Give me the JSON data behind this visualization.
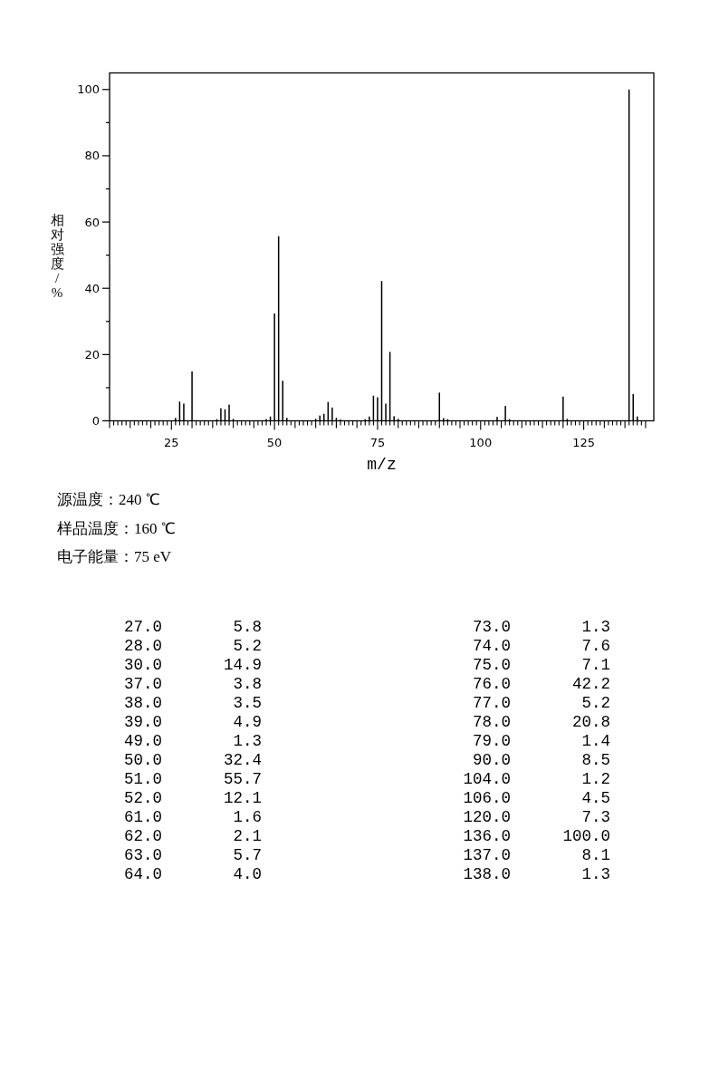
{
  "chart_data": {
    "type": "bar",
    "xlabel": "m/z",
    "ylabel": "相对强度/%",
    "color": "#000000",
    "x": [
      26,
      27,
      28,
      30,
      36,
      37,
      38,
      39,
      40,
      48,
      49,
      50,
      51,
      52,
      53,
      60,
      61,
      62,
      63,
      64,
      65,
      66,
      72,
      73,
      74,
      75,
      76,
      77,
      78,
      79,
      80,
      90,
      91,
      92,
      104,
      106,
      107,
      120,
      121,
      136,
      137,
      138
    ],
    "values": [
      0.9,
      5.8,
      5.2,
      14.9,
      0.5,
      3.8,
      3.5,
      4.9,
      0.6,
      0.5,
      1.3,
      32.4,
      55.7,
      12.1,
      0.9,
      0.6,
      1.6,
      2.1,
      5.7,
      4.0,
      0.9,
      0.4,
      0.5,
      1.3,
      7.6,
      7.1,
      42.2,
      5.2,
      20.8,
      1.4,
      0.6,
      8.5,
      0.8,
      0.5,
      1.2,
      4.5,
      0.5,
      7.3,
      0.6,
      100.0,
      8.1,
      1.3
    ],
    "xlim": [
      10,
      142
    ],
    "ylim": [
      0,
      105
    ],
    "xticks": [
      {
        "value": 10,
        "label": null
      },
      {
        "value": 11,
        "label": null
      },
      {
        "value": 12,
        "label": null
      },
      {
        "value": 13,
        "label": null
      },
      {
        "value": 14,
        "label": null
      },
      {
        "value": 15,
        "label": null
      },
      {
        "value": 16,
        "label": null
      },
      {
        "value": 17,
        "label": null
      },
      {
        "value": 18,
        "label": null
      },
      {
        "value": 19,
        "label": null
      },
      {
        "value": 20,
        "label": null
      },
      {
        "value": 21,
        "label": null
      },
      {
        "value": 22,
        "label": null
      },
      {
        "value": 23,
        "label": null
      },
      {
        "value": 24,
        "label": null
      },
      25,
      {
        "value": 26,
        "label": null
      },
      {
        "value": 27,
        "label": null
      },
      {
        "value": 28,
        "label": null
      },
      {
        "value": 29,
        "label": null
      },
      {
        "value": 30,
        "label": null
      },
      {
        "value": 31,
        "label": null
      },
      {
        "value": 32,
        "label": null
      },
      {
        "value": 33,
        "label": null
      },
      {
        "value": 34,
        "label": null
      },
      {
        "value": 35,
        "label": null
      },
      {
        "value": 36,
        "label": null
      },
      {
        "value": 37,
        "label": null
      },
      {
        "value": 38,
        "label": null
      },
      {
        "value": 39,
        "label": null
      },
      {
        "value": 40,
        "label": null
      },
      {
        "value": 41,
        "label": null
      },
      {
        "value": 42,
        "label": null
      },
      {
        "value": 43,
        "label": null
      },
      {
        "value": 44,
        "label": null
      },
      {
        "value": 45,
        "label": null
      },
      {
        "value": 46,
        "label": null
      },
      {
        "value": 47,
        "label": null
      },
      {
        "value": 48,
        "label": null
      },
      {
        "value": 49,
        "label": null
      },
      50,
      {
        "value": 51,
        "label": null
      },
      {
        "value": 52,
        "label": null
      },
      {
        "value": 53,
        "label": null
      },
      {
        "value": 54,
        "label": null
      },
      {
        "value": 55,
        "label": null
      },
      {
        "value": 56,
        "label": null
      },
      {
        "value": 57,
        "label": null
      },
      {
        "value": 58,
        "label": null
      },
      {
        "value": 59,
        "label": null
      },
      {
        "value": 60,
        "label": null
      },
      {
        "value": 61,
        "label": null
      },
      {
        "value": 62,
        "label": null
      },
      {
        "value": 63,
        "label": null
      },
      {
        "value": 64,
        "label": null
      },
      {
        "value": 65,
        "label": null
      },
      {
        "value": 66,
        "label": null
      },
      {
        "value": 67,
        "label": null
      },
      {
        "value": 68,
        "label": null
      },
      {
        "value": 69,
        "label": null
      },
      {
        "value": 70,
        "label": null
      },
      {
        "value": 71,
        "label": null
      },
      {
        "value": 72,
        "label": null
      },
      {
        "value": 73,
        "label": null
      },
      {
        "value": 74,
        "label": null
      },
      75,
      {
        "value": 76,
        "label": null
      },
      {
        "value": 77,
        "label": null
      },
      {
        "value": 78,
        "label": null
      },
      {
        "value": 79,
        "label": null
      },
      {
        "value": 80,
        "label": null
      },
      {
        "value": 81,
        "label": null
      },
      {
        "value": 82,
        "label": null
      },
      {
        "value": 83,
        "label": null
      },
      {
        "value": 84,
        "label": null
      },
      {
        "value": 85,
        "label": null
      },
      {
        "value": 86,
        "label": null
      },
      {
        "value": 87,
        "label": null
      },
      {
        "value": 88,
        "label": null
      },
      {
        "value": 89,
        "label": null
      },
      {
        "value": 90,
        "label": null
      },
      {
        "value": 91,
        "label": null
      },
      {
        "value": 92,
        "label": null
      },
      {
        "value": 93,
        "label": null
      },
      {
        "value": 94,
        "label": null
      },
      {
        "value": 95,
        "label": null
      },
      {
        "value": 96,
        "label": null
      },
      {
        "value": 97,
        "label": null
      },
      {
        "value": 98,
        "label": null
      },
      {
        "value": 99,
        "label": null
      },
      100,
      {
        "value": 101,
        "label": null
      },
      {
        "value": 102,
        "label": null
      },
      {
        "value": 103,
        "label": null
      },
      {
        "value": 104,
        "label": null
      },
      {
        "value": 105,
        "label": null
      },
      {
        "value": 106,
        "label": null
      },
      {
        "value": 107,
        "label": null
      },
      {
        "value": 108,
        "label": null
      },
      {
        "value": 109,
        "label": null
      },
      {
        "value": 110,
        "label": null
      },
      {
        "value": 111,
        "label": null
      },
      {
        "value": 112,
        "label": null
      },
      {
        "value": 113,
        "label": null
      },
      {
        "value": 114,
        "label": null
      },
      {
        "value": 115,
        "label": null
      },
      {
        "value": 116,
        "label": null
      },
      {
        "value": 117,
        "label": null
      },
      {
        "value": 118,
        "label": null
      },
      {
        "value": 119,
        "label": null
      },
      {
        "value": 120,
        "label": null
      },
      {
        "value": 121,
        "label": null
      },
      {
        "value": 122,
        "label": null
      },
      {
        "value": 123,
        "label": null
      },
      {
        "value": 124,
        "label": null
      },
      125,
      {
        "value": 126,
        "label": null
      },
      {
        "value": 127,
        "label": null
      },
      {
        "value": 128,
        "label": null
      },
      {
        "value": 129,
        "label": null
      },
      {
        "value": 130,
        "label": null
      },
      {
        "value": 131,
        "label": null
      },
      {
        "value": 132,
        "label": null
      },
      {
        "value": 133,
        "label": null
      },
      {
        "value": 134,
        "label": null
      },
      {
        "value": 135,
        "label": null
      },
      {
        "value": 136,
        "label": null
      },
      {
        "value": 137,
        "label": null
      },
      {
        "value": 138,
        "label": null
      },
      {
        "value": 139,
        "label": null
      },
      {
        "value": 140,
        "label": null
      }
    ],
    "yticks": [
      0,
      {
        "value": 10,
        "label": null
      },
      20,
      {
        "value": 30,
        "label": null
      },
      40,
      {
        "value": 50,
        "label": null
      },
      60,
      {
        "value": 70,
        "label": null
      },
      80,
      {
        "value": 90,
        "label": null
      },
      100
    ],
    "annotations": [
      "源温度：240 ℃",
      "样品温度：160 ℃",
      "电子能量：75 eV",
      "27.0 5.8",
      "73.0 1.3",
      "28.0 5.2",
      "74.0 7.6",
      "30.0 14.9",
      "75.0 7.1",
      "37.0 3.8",
      "76.0 42.2",
      "38.0 3.5",
      "77.0 5.2",
      "39.0 4.9",
      "78.0 20.8",
      "49.0 1.3",
      "79.0 1.4",
      "50.0 32.4",
      "90.0 8.5",
      "51.0 55.7",
      "104.0 1.2",
      "52.0 12.1",
      "106.0 4.5",
      "61.0 1.6",
      "120.0 7.3",
      "62.0 2.1",
      "136.0 100.0",
      "63.0 5.7",
      "137.0 8.1",
      "64.0 4.0",
      "138.0 1.3"
    ]
  }
}
